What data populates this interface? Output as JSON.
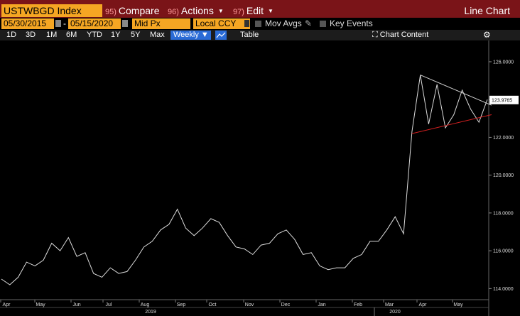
{
  "header": {
    "ticker": "USTWBGD Index",
    "compare": {
      "num": "95)",
      "label": "Compare"
    },
    "actions": {
      "num": "96)",
      "label": "Actions"
    },
    "edit": {
      "num": "97)",
      "label": "Edit"
    },
    "title": "Line Chart"
  },
  "controls": {
    "start_date": "05/30/2015",
    "date_sep": "-",
    "end_date": "05/15/2020",
    "price_field": "Mid Px",
    "currency": "Local CCY",
    "mov_avgs": "Mov Avgs",
    "key_events": "Key Events"
  },
  "toolbar": {
    "ranges": [
      "1D",
      "3D",
      "1M",
      "6M",
      "YTD",
      "1Y",
      "5Y",
      "Max"
    ],
    "frequency": "Weekly",
    "table": "Table",
    "chart_content": "Chart Content"
  },
  "chart_data": {
    "type": "line",
    "y_ticks": [
      "126.0000",
      "124.0000",
      "122.0000",
      "120.0000",
      "118.0000",
      "116.0000",
      "114.0000"
    ],
    "last_value": "123.9765",
    "x_ticks": [
      "Apr",
      "May",
      "Jun",
      "Jul",
      "Aug",
      "Sep",
      "Oct",
      "Nov",
      "Dec",
      "Jan",
      "Feb",
      "Mar",
      "Apr",
      "May"
    ],
    "years": [
      "2019",
      "2020"
    ],
    "ylim": [
      113.6,
      126.9
    ],
    "values": [
      114.5,
      114.2,
      114.6,
      115.4,
      115.2,
      115.5,
      116.4,
      116.0,
      116.7,
      115.7,
      115.9,
      114.8,
      114.6,
      115.1,
      114.8,
      114.9,
      115.5,
      116.2,
      116.5,
      117.1,
      117.4,
      118.2,
      117.2,
      116.8,
      117.2,
      117.7,
      117.5,
      116.8,
      116.2,
      116.1,
      115.8,
      116.3,
      116.4,
      116.9,
      117.1,
      116.6,
      115.8,
      115.9,
      115.2,
      115.0,
      115.1,
      115.1,
      115.6,
      115.8,
      116.5,
      116.5,
      117.1,
      117.8,
      116.9,
      122.3,
      125.3,
      122.7,
      124.8,
      122.5,
      123.2,
      124.5,
      123.5,
      122.8,
      124.0
    ],
    "trend_lines": [
      {
        "color": "#d0d0d0",
        "from": [
          50,
          125.3
        ],
        "to": [
          58.5,
          123.7
        ]
      },
      {
        "color": "#d42020",
        "from": [
          49,
          122.2
        ],
        "to": [
          58.5,
          123.2
        ]
      }
    ]
  }
}
